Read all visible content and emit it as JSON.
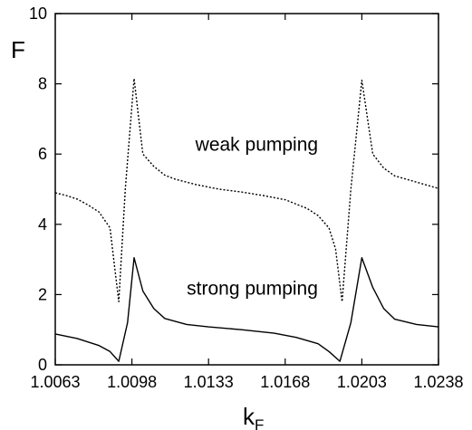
{
  "chart_data": {
    "type": "line",
    "title": "",
    "xlabel": "k",
    "xlabel_subscript": "F",
    "ylabel": "F",
    "xlim": [
      1.0063,
      1.0238
    ],
    "ylim": [
      0,
      10
    ],
    "x_ticks": [
      "1.0063",
      "1.0098",
      "1.0133",
      "1.0168",
      "1.0203",
      "1.0238"
    ],
    "y_ticks": [
      "0",
      "2",
      "4",
      "6",
      "8",
      "10"
    ],
    "grid": false,
    "legend": "none",
    "annotations": [
      {
        "text": "weak pumping",
        "x": 1.0155,
        "y": 6.1
      },
      {
        "text": "strong pumping",
        "x": 1.0153,
        "y": 2.0
      }
    ],
    "series": [
      {
        "style": "dotted",
        "color": "#000000",
        "x": [
          1.0063,
          1.0068,
          1.0073,
          1.0078,
          1.0083,
          1.0088,
          1.0092,
          1.0095,
          1.0099,
          1.0103,
          1.0108,
          1.0113,
          1.0118,
          1.0128,
          1.0138,
          1.0148,
          1.0158,
          1.0168,
          1.0178,
          1.0183,
          1.0188,
          1.0191,
          1.0194,
          1.0198,
          1.0203,
          1.0208,
          1.0213,
          1.0218,
          1.0228,
          1.0238
        ],
        "y": [
          4.9,
          4.82,
          4.72,
          4.55,
          4.35,
          3.9,
          1.8,
          5.0,
          8.15,
          6.0,
          5.65,
          5.4,
          5.28,
          5.12,
          5.0,
          4.92,
          4.82,
          4.7,
          4.45,
          4.25,
          3.9,
          3.3,
          1.8,
          5.0,
          8.1,
          6.0,
          5.6,
          5.38,
          5.2,
          5.02
        ]
      },
      {
        "style": "solid",
        "color": "#000000",
        "x": [
          1.0063,
          1.0073,
          1.0083,
          1.0088,
          1.0092,
          1.0096,
          1.0099,
          1.0103,
          1.0108,
          1.0113,
          1.0123,
          1.0133,
          1.0148,
          1.0163,
          1.0173,
          1.0183,
          1.0188,
          1.0193,
          1.0198,
          1.0203,
          1.0208,
          1.0213,
          1.0218,
          1.0228,
          1.0238
        ],
        "y": [
          0.88,
          0.75,
          0.55,
          0.38,
          0.1,
          1.2,
          3.05,
          2.1,
          1.6,
          1.32,
          1.15,
          1.08,
          1.0,
          0.9,
          0.78,
          0.6,
          0.38,
          0.1,
          1.2,
          3.05,
          2.2,
          1.6,
          1.3,
          1.15,
          1.08
        ]
      }
    ]
  }
}
